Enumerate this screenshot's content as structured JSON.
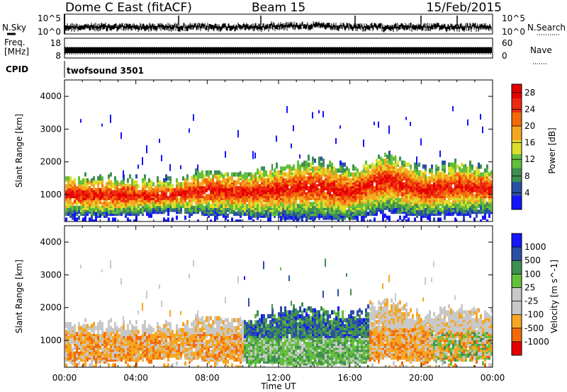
{
  "header": {
    "title": "Dome C East (fitACF)",
    "beam": "Beam 15",
    "date": "15/Feb/2015"
  },
  "top_panels": {
    "nsky_label": "N.Sky",
    "nsky_ticks": [
      "10^5",
      "10^0"
    ],
    "nsearch_label": "N.Search",
    "nsearch_ticks": [
      "10^5",
      "10^0"
    ],
    "freq_label_1": "Freq.",
    "freq_label_2": "[MHz]",
    "freq_ticks": [
      "18",
      "8"
    ],
    "nave_label": "Nave",
    "nave_ticks": [
      "60",
      "0"
    ],
    "cpid_label": "CPID",
    "cpid_value": "twofsound 3501"
  },
  "colors": {
    "power_scale": [
      "#1515ff",
      "#2b4fa6",
      "#3f8f52",
      "#63bf3c",
      "#dede2a",
      "#f5a623",
      "#f26a0a",
      "#ee2a10",
      "#e60000"
    ],
    "velocity_scale": [
      "#e60000",
      "#f26a0a",
      "#f5a623",
      "#c8c8c8",
      "#c8c8c8",
      "#63bf3c",
      "#3f8f52",
      "#2b4fa6",
      "#1515ff"
    ]
  },
  "chart_data": [
    {
      "type": "heatmap",
      "panel": "power",
      "xlabel": "Time UT",
      "ylabel": "Slant Range [km]",
      "x_range_hours": [
        0,
        24
      ],
      "x_ticks": [
        "00:00",
        "04:00",
        "08:00",
        "12:00",
        "16:00",
        "20:00",
        "00:00"
      ],
      "ylim": [
        180,
        4500
      ],
      "y_ticks": [
        1000,
        2000,
        3000,
        4000
      ],
      "colorbar_label": "Power [dB]",
      "colorbar_ticks": [
        "4",
        "8",
        "12",
        "16",
        "20",
        "24",
        "28"
      ],
      "colorbar_range": [
        0,
        30
      ],
      "echo_band_upper_km": [
        1600,
        1550,
        1500,
        1450,
        1800,
        1700,
        1900,
        2100,
        1800,
        2300,
        1800,
        2000,
        1800
      ],
      "echo_band_lower_km": [
        400,
        350,
        400,
        500,
        400,
        350,
        300,
        300,
        250,
        500,
        350,
        400,
        450
      ]
    },
    {
      "type": "heatmap",
      "panel": "velocity",
      "xlabel": "Time UT",
      "ylabel": "Slant Range [km]",
      "x_range_hours": [
        0,
        24
      ],
      "x_ticks": [
        "00:00",
        "04:00",
        "08:00",
        "12:00",
        "16:00",
        "20:00",
        "00:00"
      ],
      "ylim": [
        180,
        4500
      ],
      "y_ticks": [
        1000,
        2000,
        3000,
        4000
      ],
      "colorbar_label": "Velocity [m s^-1]",
      "colorbar_ticks": [
        "1000",
        "500",
        "100",
        "25",
        "-25",
        "-100",
        "-500",
        "-1000"
      ],
      "echo_band_upper_km": [
        1600,
        1550,
        1500,
        1450,
        1800,
        1700,
        1900,
        2100,
        1800,
        2300,
        1800,
        2000,
        1800
      ],
      "echo_band_lower_km": [
        400,
        350,
        400,
        500,
        400,
        350,
        300,
        300,
        250,
        500,
        350,
        400,
        450
      ]
    }
  ]
}
